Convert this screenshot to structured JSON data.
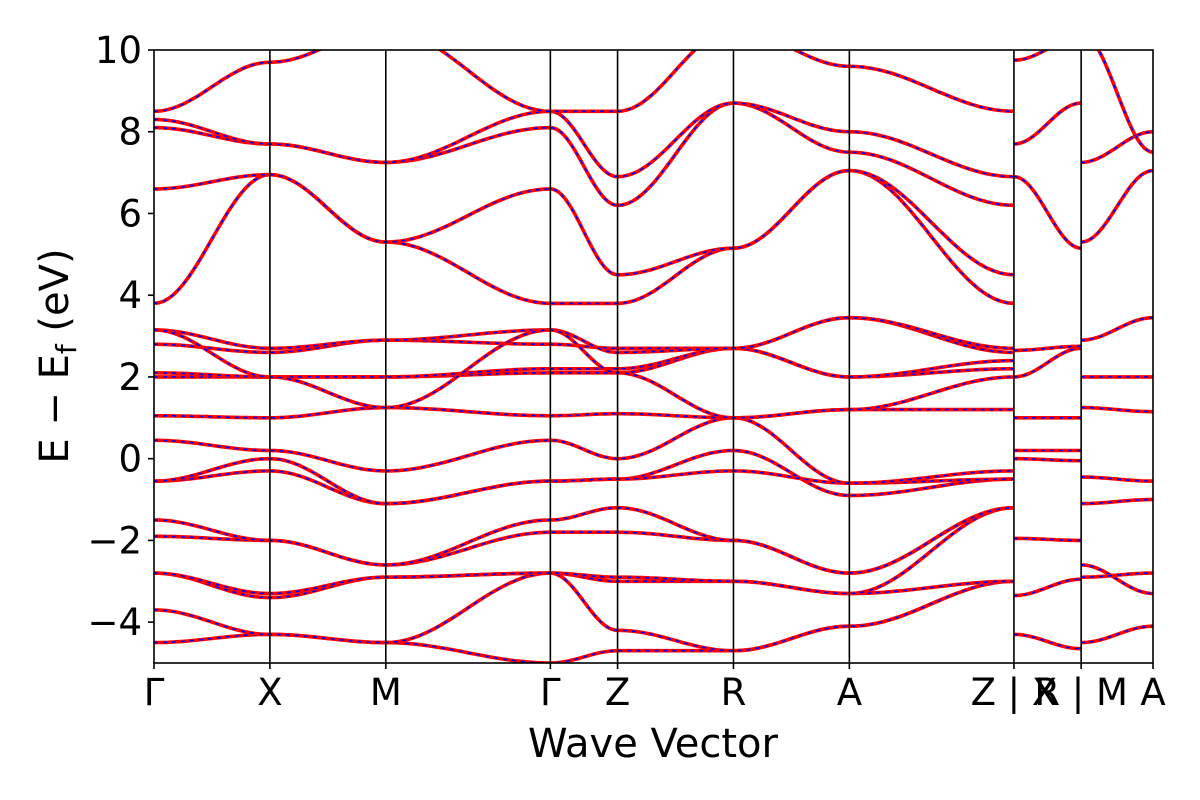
{
  "chart_data": {
    "type": "line",
    "title": "",
    "xlabel": "Wave Vector",
    "ylabel": "E − E",
    "ylabel_sub": "f",
    "ylabel_unit": " (eV)",
    "ylim": [
      -5,
      10
    ],
    "yticks": [
      -4,
      -2,
      0,
      2,
      4,
      6,
      8,
      10
    ],
    "ytick_labels": [
      "−4",
      "−2",
      "0",
      "2",
      "4",
      "6",
      "8",
      "10"
    ],
    "xlim": [
      0,
      8.62
    ],
    "kpoints": [
      {
        "label": "Γ",
        "x": 0.0
      },
      {
        "label": "X",
        "x": 1.0
      },
      {
        "label": "M",
        "x": 2.0
      },
      {
        "label": "Γ",
        "x": 3.42
      },
      {
        "label": "Z",
        "x": 4.0
      },
      {
        "label": "R",
        "x": 5.0
      },
      {
        "label": "A",
        "x": 6.0
      },
      {
        "label": "Z | X",
        "x": 7.42
      },
      {
        "label": "R | M",
        "x": 8.0
      },
      {
        "label": "A",
        "x": 8.62
      }
    ],
    "grid": false,
    "legend": "none",
    "series_styles": [
      {
        "color": "#ff0000",
        "style": "solid"
      },
      {
        "color": "#0000ff",
        "style": "dashed"
      }
    ],
    "series": [
      {
        "x": [
          0,
          1,
          2,
          3.42,
          4,
          5,
          6,
          7.42
        ],
        "y": [
          -4.5,
          -4.3,
          -4.5,
          -5.0,
          -4.7,
          -4.7,
          -4.1,
          -3.0
        ]
      },
      {
        "x": [
          0,
          1,
          2,
          3.42,
          4,
          5,
          6,
          7.42
        ],
        "y": [
          -3.7,
          -4.3,
          -4.5,
          -2.8,
          -4.2,
          -4.7,
          -4.1,
          -3.0
        ]
      },
      {
        "x": [
          0,
          1,
          2,
          3.42,
          4,
          5,
          6,
          7.42
        ],
        "y": [
          -2.8,
          -3.4,
          -2.9,
          -2.8,
          -3.0,
          -3.0,
          -3.3,
          -3.0
        ]
      },
      {
        "x": [
          0,
          1,
          2,
          3.42,
          4,
          5,
          6,
          7.42
        ],
        "y": [
          -2.8,
          -3.3,
          -2.9,
          -2.8,
          -2.9,
          -3.0,
          -3.3,
          -1.2
        ]
      },
      {
        "x": [
          0,
          1,
          2,
          3.42,
          4,
          5,
          6,
          7.42
        ],
        "y": [
          -1.9,
          -2.0,
          -2.6,
          -1.8,
          -1.8,
          -2.0,
          -2.8,
          -1.2
        ]
      },
      {
        "x": [
          0,
          1,
          2,
          3.42,
          4,
          5,
          6,
          7.42
        ],
        "y": [
          -1.5,
          -2.0,
          -2.6,
          -1.5,
          -1.2,
          -2.0,
          -2.8,
          -1.2
        ]
      },
      {
        "x": [
          0,
          1,
          2,
          3.42,
          4,
          5,
          6,
          7.42
        ],
        "y": [
          -0.55,
          -0.3,
          -1.1,
          -0.55,
          -0.5,
          0.2,
          -0.9,
          -0.5
        ]
      },
      {
        "x": [
          0,
          1,
          2,
          3.42,
          4,
          5,
          6,
          7.42
        ],
        "y": [
          -0.55,
          0.0,
          -1.1,
          -0.55,
          -0.5,
          -0.3,
          -0.6,
          -0.5
        ]
      },
      {
        "x": [
          0,
          1,
          2,
          3.42,
          4,
          5,
          6,
          7.42
        ],
        "y": [
          0.45,
          0.2,
          -0.3,
          0.45,
          0.0,
          1.0,
          -0.6,
          -0.3
        ]
      },
      {
        "x": [
          0,
          1,
          2,
          3.42,
          4,
          5,
          6,
          7.42
        ],
        "y": [
          1.05,
          1.0,
          1.25,
          1.05,
          1.1,
          1.0,
          1.2,
          1.2
        ]
      },
      {
        "x": [
          0,
          1,
          2,
          3.42,
          4,
          5,
          6,
          7.42
        ],
        "y": [
          2.0,
          2.0,
          2.0,
          2.1,
          2.1,
          2.7,
          2.0,
          2.2
        ]
      },
      {
        "x": [
          0,
          1,
          2,
          3.42,
          4,
          5,
          6,
          7.42
        ],
        "y": [
          2.1,
          2.0,
          2.0,
          2.2,
          2.2,
          2.7,
          2.0,
          2.4
        ]
      },
      {
        "x": [
          0,
          1,
          2,
          3.42,
          4,
          5,
          6,
          7.42
        ],
        "y": [
          2.8,
          2.6,
          2.9,
          2.8,
          2.7,
          2.7,
          3.45,
          2.6
        ]
      },
      {
        "x": [
          0,
          1,
          2,
          3.42,
          4,
          5,
          6,
          7.42
        ],
        "y": [
          3.15,
          2.7,
          2.9,
          3.15,
          2.6,
          2.7,
          3.45,
          2.7
        ]
      },
      {
        "x": [
          0,
          1,
          2,
          3.42,
          4,
          5,
          6,
          7.42
        ],
        "y": [
          3.8,
          6.95,
          5.3,
          3.8,
          3.8,
          5.15,
          7.05,
          3.8
        ]
      },
      {
        "x": [
          0,
          1,
          2,
          3.42,
          4,
          5,
          6,
          7.42
        ],
        "y": [
          6.6,
          6.95,
          5.3,
          6.6,
          4.5,
          5.15,
          7.05,
          4.5
        ]
      },
      {
        "x": [
          0,
          1,
          2,
          3.42,
          4,
          5,
          6,
          7.42
        ],
        "y": [
          8.1,
          7.7,
          7.25,
          8.1,
          6.2,
          8.7,
          7.5,
          6.2
        ]
      },
      {
        "x": [
          0,
          1,
          2,
          3.42,
          4,
          5,
          6,
          7.42
        ],
        "y": [
          8.3,
          7.7,
          7.25,
          8.5,
          6.9,
          8.7,
          8.0,
          6.9
        ]
      },
      {
        "x": [
          0,
          1,
          2,
          3.42,
          4,
          5,
          6,
          7.42
        ],
        "y": [
          8.5,
          9.7,
          10.5,
          8.5,
          8.5,
          10.5,
          9.6,
          8.5
        ]
      },
      {
        "x": [
          0,
          1,
          2,
          3.42,
          4,
          5,
          6,
          7.42
        ],
        "y": [
          3.15,
          2.0,
          1.25,
          3.15,
          2.1,
          1.0,
          1.2,
          2.0
        ]
      },
      {
        "x": [
          7.42,
          8.0
        ],
        "y": [
          -4.3,
          -4.65
        ]
      },
      {
        "x": [
          7.42,
          8.0
        ],
        "y": [
          -3.35,
          -2.95
        ]
      },
      {
        "x": [
          7.42,
          8.0
        ],
        "y": [
          -1.95,
          -2.0
        ]
      },
      {
        "x": [
          7.42,
          8.0
        ],
        "y": [
          0.0,
          -0.05
        ]
      },
      {
        "x": [
          7.42,
          8.0
        ],
        "y": [
          0.2,
          0.2
        ]
      },
      {
        "x": [
          7.42,
          8.0
        ],
        "y": [
          1.0,
          1.0
        ]
      },
      {
        "x": [
          7.42,
          8.0
        ],
        "y": [
          2.0,
          2.7
        ]
      },
      {
        "x": [
          7.42,
          8.0
        ],
        "y": [
          2.65,
          2.75
        ]
      },
      {
        "x": [
          7.42,
          8.0
        ],
        "y": [
          6.9,
          5.15
        ]
      },
      {
        "x": [
          7.42,
          8.0
        ],
        "y": [
          7.7,
          8.7
        ]
      },
      {
        "x": [
          7.42,
          8.0
        ],
        "y": [
          9.75,
          10.3
        ]
      },
      {
        "x": [
          8.0,
          8.62
        ],
        "y": [
          -4.5,
          -4.1
        ]
      },
      {
        "x": [
          8.0,
          8.62
        ],
        "y": [
          -2.6,
          -3.3
        ]
      },
      {
        "x": [
          8.0,
          8.62
        ],
        "y": [
          -2.9,
          -2.8
        ]
      },
      {
        "x": [
          8.0,
          8.62
        ],
        "y": [
          -1.1,
          -1.0
        ]
      },
      {
        "x": [
          8.0,
          8.62
        ],
        "y": [
          -0.45,
          -0.55
        ]
      },
      {
        "x": [
          8.0,
          8.62
        ],
        "y": [
          1.25,
          1.15
        ]
      },
      {
        "x": [
          8.0,
          8.62
        ],
        "y": [
          2.0,
          2.0
        ]
      },
      {
        "x": [
          8.0,
          8.62
        ],
        "y": [
          2.9,
          3.45
        ]
      },
      {
        "x": [
          8.0,
          8.62
        ],
        "y": [
          5.3,
          7.05
        ]
      },
      {
        "x": [
          8.0,
          8.62
        ],
        "y": [
          7.25,
          8.0
        ]
      },
      {
        "x": [
          8.0,
          8.62
        ],
        "y": [
          10.4,
          7.5
        ]
      }
    ]
  }
}
